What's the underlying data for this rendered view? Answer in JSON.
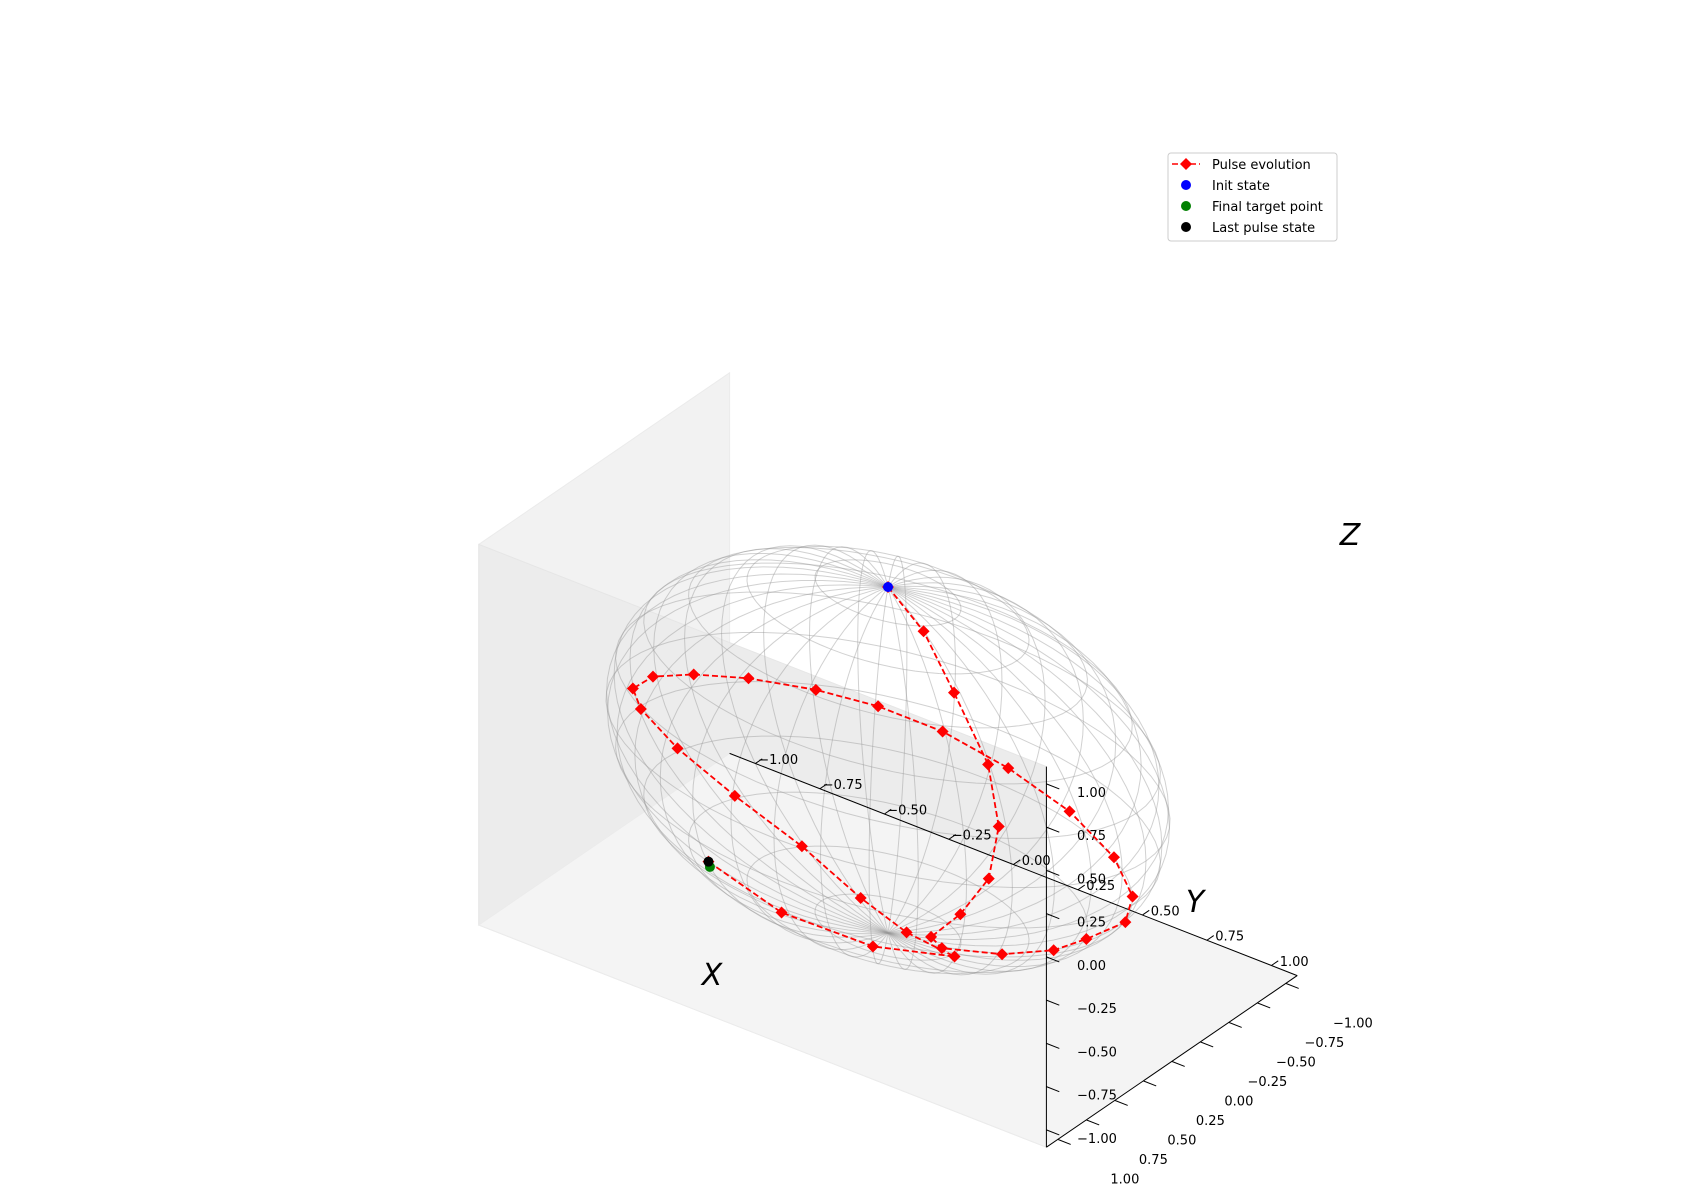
{
  "chart_data": {
    "type": "scatter",
    "title": "",
    "xlabel": "X",
    "ylabel": "Y",
    "zlabel": "Z",
    "xlim": [
      -1.1,
      1.1
    ],
    "ylim": [
      -1.1,
      1.1
    ],
    "zlim": [
      -1.1,
      1.1
    ],
    "x_ticks": [
      "−1.00",
      "−0.75",
      "−0.50",
      "−0.25",
      "0.00",
      "0.25",
      "0.50",
      "0.75",
      "1.00"
    ],
    "y_ticks": [
      "−1.00",
      "−0.75",
      "−0.50",
      "−0.25",
      "0.00",
      "0.25",
      "0.50",
      "0.75",
      "1.00"
    ],
    "z_ticks": [
      "−1.00",
      "−0.75",
      "−0.50",
      "−0.25",
      "0.00",
      "0.25",
      "0.50",
      "0.75",
      "1.00"
    ],
    "grid": false,
    "legend_position": "top-right",
    "series": [
      {
        "name": "Pulse evolution",
        "style": "dashed line with diamond markers",
        "color": "#ff0000",
        "points": [
          [
            0.0,
            0.0,
            1.0
          ],
          [
            0.16,
            0.05,
            0.86
          ],
          [
            0.3,
            0.1,
            0.61
          ],
          [
            0.45,
            0.14,
            0.3
          ],
          [
            0.5,
            0.16,
            -0.02
          ],
          [
            0.47,
            0.18,
            -0.33
          ],
          [
            0.36,
            0.18,
            -0.6
          ],
          [
            0.22,
            0.12,
            -0.84
          ],
          [
            0.2,
            -0.02,
            -0.98
          ],
          [
            0.42,
            -0.05,
            -0.9
          ],
          [
            0.62,
            -0.05,
            -0.76
          ],
          [
            0.76,
            -0.02,
            -0.6
          ],
          [
            0.92,
            0.0,
            -0.4
          ],
          [
            0.97,
            0.05,
            -0.2
          ],
          [
            0.92,
            0.1,
            0.02
          ],
          [
            0.77,
            0.15,
            0.22
          ],
          [
            0.55,
            0.19,
            0.36
          ],
          [
            0.3,
            0.2,
            0.43
          ],
          [
            0.05,
            0.2,
            0.43
          ],
          [
            -0.2,
            0.18,
            0.37
          ],
          [
            -0.47,
            0.16,
            0.27
          ],
          [
            -0.7,
            0.12,
            0.14
          ],
          [
            -0.88,
            0.07,
            0.0
          ],
          [
            -0.98,
            0.02,
            -0.15
          ],
          [
            -0.98,
            -0.05,
            -0.3
          ],
          [
            -0.86,
            -0.1,
            -0.48
          ],
          [
            -0.66,
            -0.15,
            -0.66
          ],
          [
            -0.4,
            -0.15,
            -0.8
          ],
          [
            -0.15,
            -0.1,
            -0.93
          ],
          [
            0.05,
            -0.05,
            -0.99
          ],
          [
            0.28,
            0.05,
            -0.95
          ],
          [
            0.03,
            0.2,
            -0.97
          ],
          [
            -0.28,
            0.3,
            -0.91
          ],
          [
            -0.55,
            0.33,
            -0.76
          ]
        ]
      },
      {
        "name": "Init state",
        "style": "scatter",
        "color": "#0000ff",
        "points": [
          [
            0.0,
            0.0,
            1.0
          ]
        ]
      },
      {
        "name": "Final target point",
        "style": "scatter",
        "color": "#008000",
        "points": [
          [
            -0.54,
            0.34,
            -0.78
          ]
        ]
      },
      {
        "name": "Last pulse state",
        "style": "scatter",
        "color": "#000000",
        "points": [
          [
            -0.55,
            0.33,
            -0.76
          ]
        ]
      }
    ]
  }
}
